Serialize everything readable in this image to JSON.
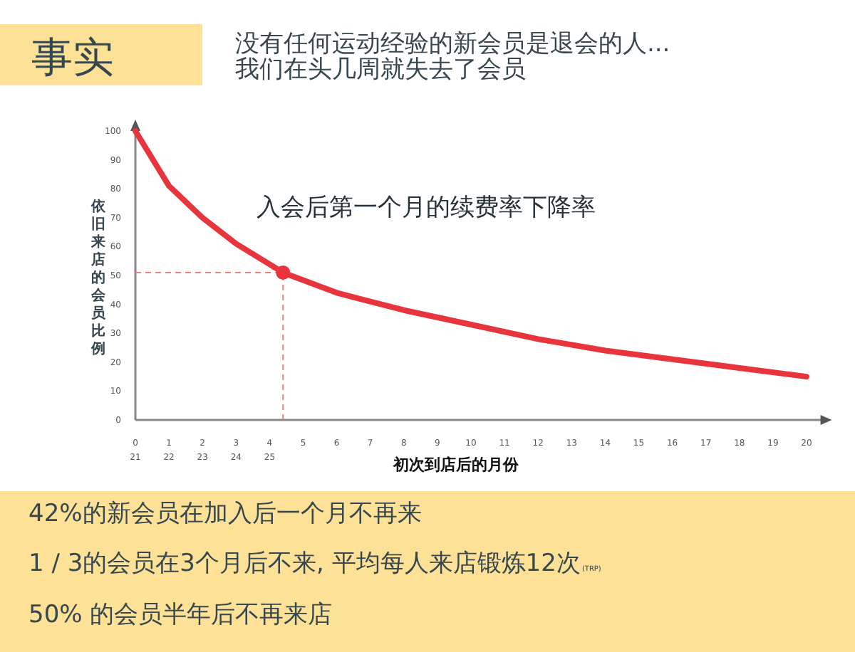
{
  "chart_data": {
    "type": "line",
    "title": "事实",
    "subtitle": "没有任何运动经验的新会员是退会的人...\n我们在头几周就失去了会员",
    "xlabel": "初次到店后的月份",
    "ylabel": "依旧来店的会员比例",
    "annotations": [
      "入会后第一个月的续费率下降率",
      "42%的新会员在加入后一个月不再来",
      "1 / 3的会员在3个月后不来, 平均每人来店锻炼12次",
      "(TRP)",
      "50% 的会员半年后不再来店"
    ],
    "series": [
      {
        "type": "line",
        "color": "#e8343c",
        "marker": "none",
        "line_style": "solid",
        "x": [
          0,
          1,
          2,
          3,
          4.4,
          6,
          8,
          10,
          12,
          14,
          16,
          18,
          20
        ],
        "values": [
          100,
          81,
          70,
          61,
          51,
          44,
          38,
          33,
          28,
          24,
          21,
          18,
          15
        ]
      },
      {
        "type": "scatter",
        "color": "#e8343c",
        "marker": "circle",
        "x": [
          4.4
        ],
        "values": [
          51
        ]
      }
    ],
    "ref_lines": [
      {
        "axis": "y",
        "value": 51,
        "color": "#f08080",
        "line_style": "dashed"
      },
      {
        "axis": "x",
        "value": 4.4,
        "color": "#f08080",
        "line_style": "dashed"
      }
    ],
    "xlim": [
      0,
      20.5
    ],
    "ylim": [
      0,
      101
    ],
    "xticks": [
      {
        "value": 0,
        "label": "0\n21"
      },
      {
        "value": 1,
        "label": "1\n22"
      },
      {
        "value": 2,
        "label": "2\n23"
      },
      {
        "value": 3,
        "label": "3\n24"
      },
      {
        "value": 4,
        "label": "4\n25"
      },
      5,
      6,
      7,
      8,
      9,
      10,
      11,
      12,
      13,
      14,
      15,
      16,
      17,
      18,
      19,
      20
    ],
    "yticks": [
      0,
      10,
      20,
      30,
      40,
      50,
      60,
      70,
      80,
      90,
      100
    ],
    "grid": false
  }
}
